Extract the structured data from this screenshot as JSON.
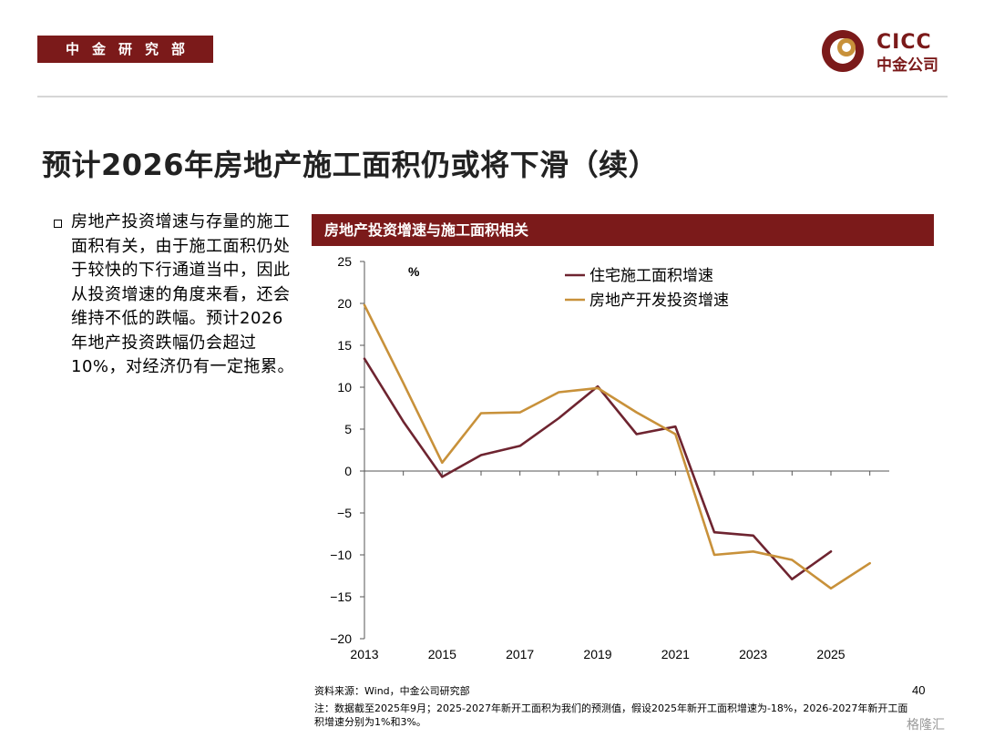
{
  "header": {
    "dept": "中金研究部",
    "logo_en": "CICC",
    "logo_cn": "中金公司"
  },
  "title": "预计2026年房地产施工面积仍或将下滑（续）",
  "bullet": "房地产投资增速与存量的施工面积有关，由于施工面积仍处于较快的下行通道当中，因此从投资增速的角度来看，还会维持不低的跌幅。预计2026年地产投资跌幅仍会超过10%，对经济仍有一定拖累。",
  "chart_header": "房地产投资增速与施工面积相关",
  "chart_data": {
    "type": "line",
    "unit": "%",
    "x": [
      2013,
      2014,
      2015,
      2016,
      2017,
      2018,
      2019,
      2020,
      2021,
      2022,
      2023,
      2024,
      2025,
      2026
    ],
    "x_ticks": [
      "2013",
      "2015",
      "2017",
      "2019",
      "2021",
      "2023",
      "2025"
    ],
    "ylim": [
      -20,
      25
    ],
    "y_ticks": [
      "25",
      "20",
      "15",
      "10",
      "5",
      "0",
      "−5",
      "−10",
      "−15",
      "−20"
    ],
    "grid": false,
    "legend_position": "top-right",
    "series": [
      {
        "name": "住宅施工面积增速",
        "color": "#6e2430",
        "values": [
          13.4,
          5.9,
          -0.7,
          1.9,
          3.0,
          6.3,
          10.1,
          4.4,
          5.3,
          -7.3,
          -7.7,
          -12.9,
          -9.6,
          null
        ]
      },
      {
        "name": "房地产开发投资增速",
        "color": "#c8913a",
        "values": [
          19.8,
          10.5,
          1.0,
          6.9,
          7.0,
          9.4,
          9.9,
          7.0,
          4.4,
          -10.0,
          -9.6,
          -10.6,
          -14.0,
          -11.0
        ]
      }
    ]
  },
  "source": "资料来源：Wind，中金公司研究部",
  "page_number": "40",
  "note": "注：数据截至2025年9月；2025-2027年新开工面积为我们的预测值，假设2025年新开工面积增速为-18%，2026-2027年新开工面积增速分别为1%和3%。",
  "watermark": "格隆汇"
}
